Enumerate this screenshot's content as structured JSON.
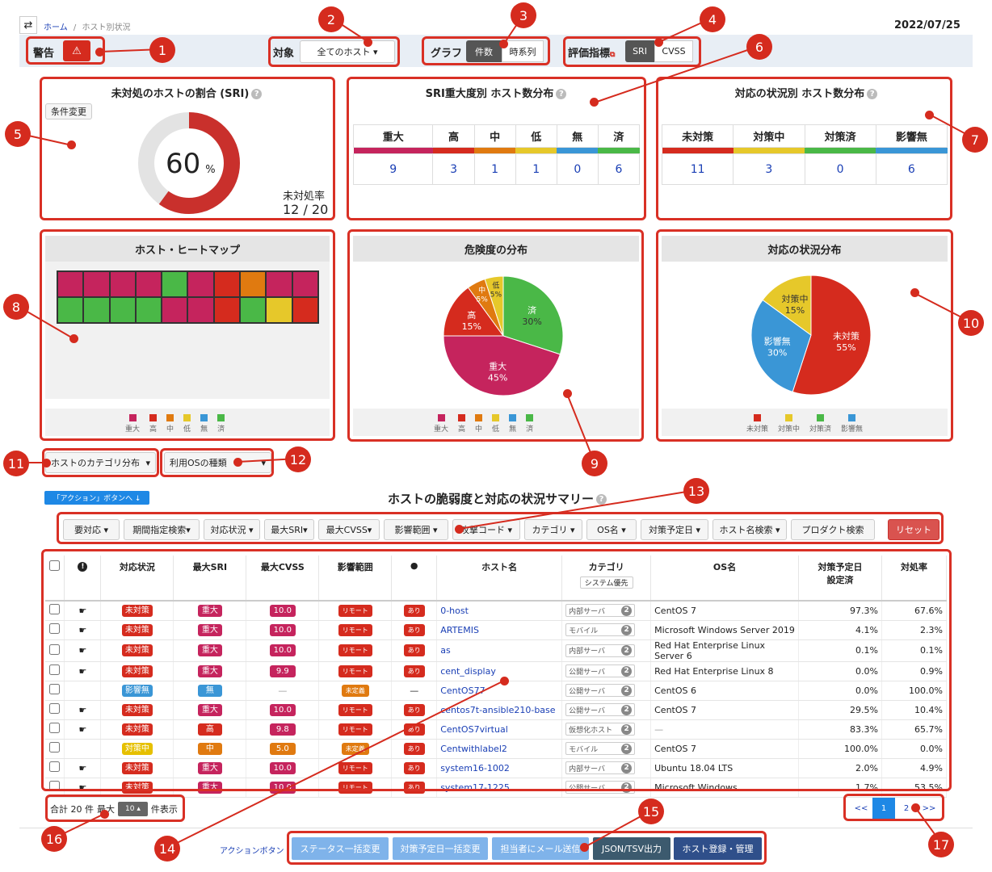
{
  "nav": {
    "toggle": "⇄",
    "home": "ホーム",
    "sep": "/",
    "current": "ホスト別状況",
    "date": "2022/07/25"
  },
  "toolbar": {
    "warn_label": "警告",
    "warn_icon": "⚠",
    "target_label": "対象",
    "target_value": "全てのホスト ▾",
    "graph_label": "グラフ",
    "graph_count": "件数",
    "graph_series": "時系列",
    "metric_label": "評価指標",
    "metric_sri": "SRI",
    "metric_cvss": "CVSS"
  },
  "callouts": [
    "1",
    "2",
    "3",
    "4",
    "5",
    "6",
    "7",
    "8",
    "9",
    "10",
    "11",
    "12",
    "13",
    "14",
    "15",
    "16",
    "17"
  ],
  "sri_card": {
    "title": "未対処のホストの割合 (SRI)",
    "cond_btn": "条件変更",
    "percent": "60",
    "unit": "%",
    "rate_label": "未対処率",
    "rate_value": "12 / 20",
    "percent_value": 60
  },
  "sev_card": {
    "title": "SRI重大度別 ホスト数分布",
    "headers": [
      "重大",
      "高",
      "中",
      "低",
      "無",
      "済"
    ],
    "values": [
      "9",
      "3",
      "1",
      "1",
      "0",
      "6"
    ],
    "colors": [
      "#c5245d",
      "#d52b1e",
      "#e07a10",
      "#e6c82a",
      "#3a96d6",
      "#4ab847"
    ]
  },
  "status_card": {
    "title": "対応の状況別 ホスト数分布",
    "headers": [
      "未対策",
      "対策中",
      "対策済",
      "影響無"
    ],
    "values": [
      "11",
      "3",
      "0",
      "6"
    ],
    "colors": [
      "#d52b1e",
      "#e6c82a",
      "#4ab847",
      "#3a96d6"
    ]
  },
  "heatmap": {
    "title": "ホスト・ヒートマップ",
    "rows": [
      [
        "#c5245d",
        "#c5245d",
        "#c5245d",
        "#c5245d",
        "#4ab847",
        "#c5245d",
        "#d52b1e",
        "#e07a10",
        "#c5245d",
        "#c5245d"
      ],
      [
        "#4ab847",
        "#4ab847",
        "#4ab847",
        "#4ab847",
        "#c5245d",
        "#c5245d",
        "#d52b1e",
        "#4ab847",
        "#e6c82a",
        "#d52b1e"
      ]
    ],
    "legend": [
      "重大",
      "高",
      "中",
      "低",
      "無",
      "済"
    ]
  },
  "risk_pie": {
    "title": "危険度の分布",
    "legend": [
      "重大",
      "高",
      "中",
      "低",
      "無",
      "済"
    ]
  },
  "status_pie": {
    "title": "対応の状況分布",
    "legend": [
      "未対策",
      "対策中",
      "対策済",
      "影響無"
    ]
  },
  "chart_data": [
    {
      "type": "pie",
      "title": "危険度の分布",
      "labels": [
        "済",
        "重大",
        "高",
        "中",
        "低"
      ],
      "values": [
        30,
        45,
        15,
        5,
        5
      ],
      "colors": [
        "#4ab847",
        "#c5245d",
        "#d52b1e",
        "#e07a10",
        "#e6c82a"
      ]
    },
    {
      "type": "pie",
      "title": "対応の状況分布",
      "labels": [
        "未対策",
        "影響無",
        "対策中"
      ],
      "values": [
        55,
        30,
        15
      ],
      "colors": [
        "#d52b1e",
        "#3a96d6",
        "#e6c82a"
      ]
    }
  ],
  "dropdowns": {
    "category": "ホストのカテゴリ分布",
    "os": "利用OSの種類"
  },
  "action_jump": "「アクション」ボタンへ ↓",
  "summary_title": "ホストの脆弱度と対応の状況サマリー",
  "filters": [
    "要対応 ▾",
    "期間指定検索▾",
    "対応状況 ▾",
    "最大SRI▾",
    "最大CVSS▾",
    "影響範囲 ▾",
    "攻撃コード ▾",
    "カテゴリ ▾",
    "OS名 ▾",
    "対策予定日 ▾",
    "ホスト名検索 ▾",
    "プロダクト検索",
    "リセット"
  ],
  "table": {
    "headers": [
      "対応状況",
      "最大SRI",
      "最大CVSS",
      "影響範囲",
      "ホスト名",
      "カテゴリ",
      "OS名",
      "対策予定日\n設定済",
      "対処率"
    ],
    "sys_btn": "システム優先",
    "rows": [
      {
        "status": "未対策",
        "sri": "重大",
        "cvss": "10.0",
        "scope": "リモート",
        "exploit": "あり",
        "host": "0-host",
        "cat": "内部サーバ",
        "n": "2",
        "os": "CentOS 7",
        "plan": "97.3%",
        "rate": "67.6%",
        "pin": "☛"
      },
      {
        "status": "未対策",
        "sri": "重大",
        "cvss": "10.0",
        "scope": "リモート",
        "exploit": "あり",
        "host": "ARTEMIS",
        "cat": "モバイル",
        "n": "2",
        "os": "Microsoft Windows Server 2019",
        "plan": "4.1%",
        "rate": "2.3%",
        "pin": "☛"
      },
      {
        "status": "未対策",
        "sri": "重大",
        "cvss": "10.0",
        "scope": "リモート",
        "exploit": "あり",
        "host": "as",
        "cat": "内部サーバ",
        "n": "2",
        "os": "Red Hat Enterprise Linux Server 6",
        "plan": "0.1%",
        "rate": "0.1%",
        "pin": "☛"
      },
      {
        "status": "未対策",
        "sri": "重大",
        "cvss": "9.9",
        "scope": "リモート",
        "exploit": "あり",
        "host": "cent_display",
        "cat": "公開サーバ",
        "n": "2",
        "os": "Red Hat Enterprise Linux 8",
        "plan": "0.0%",
        "rate": "0.9%",
        "pin": "☛"
      },
      {
        "status": "影響無",
        "sri": "無",
        "cvss": "—",
        "scope": "未定義",
        "exploit": "—",
        "host": "CentOS77",
        "cat": "公開サーバ",
        "n": "2",
        "os": "CentOS 6",
        "plan": "0.0%",
        "rate": "100.0%",
        "pin": ""
      },
      {
        "status": "未対策",
        "sri": "重大",
        "cvss": "10.0",
        "scope": "リモート",
        "exploit": "あり",
        "host": "centos7t-ansible210-base",
        "cat": "公開サーバ",
        "n": "2",
        "os": "CentOS 7",
        "plan": "29.5%",
        "rate": "10.4%",
        "pin": "☛"
      },
      {
        "status": "未対策",
        "sri": "高",
        "cvss": "9.8",
        "scope": "リモート",
        "exploit": "あり",
        "host": "CentOS7virtual",
        "cat": "仮想化ホスト",
        "n": "2",
        "os": "—",
        "plan": "83.3%",
        "rate": "65.7%",
        "pin": "☛"
      },
      {
        "status": "対策中",
        "sri": "中",
        "cvss": "5.0",
        "scope": "未定義",
        "exploit": "あり",
        "host": "Centwithlabel2",
        "cat": "モバイル",
        "n": "2",
        "os": "CentOS 7",
        "plan": "100.0%",
        "rate": "0.0%",
        "pin": ""
      },
      {
        "status": "未対策",
        "sri": "重大",
        "cvss": "10.0",
        "scope": "リモート",
        "exploit": "あり",
        "host": "system16-1002",
        "cat": "内部サーバ",
        "n": "2",
        "os": "Ubuntu 18.04 LTS",
        "plan": "2.0%",
        "rate": "4.9%",
        "pin": "☛"
      },
      {
        "status": "未対策",
        "sri": "重大",
        "cvss": "10.0",
        "scope": "リモート",
        "exploit": "あり",
        "host": "system17-1225",
        "cat": "公開サーバ",
        "n": "2",
        "os": "Microsoft Windows",
        "plan": "1.7%",
        "rate": "53.5%",
        "pin": "☛"
      }
    ]
  },
  "footer": {
    "total": "合計 20 件",
    "max": "最大",
    "max_value": "10 ▴",
    "show": "件表示",
    "pages": [
      "<<",
      "1",
      "2",
      ">>"
    ],
    "action_label": "アクションボタン",
    "actions": [
      "ステータス一括変更",
      "対策予定日一括変更",
      "担当者にメール送信",
      "JSON/TSV出力",
      "ホスト登録・管理"
    ]
  }
}
